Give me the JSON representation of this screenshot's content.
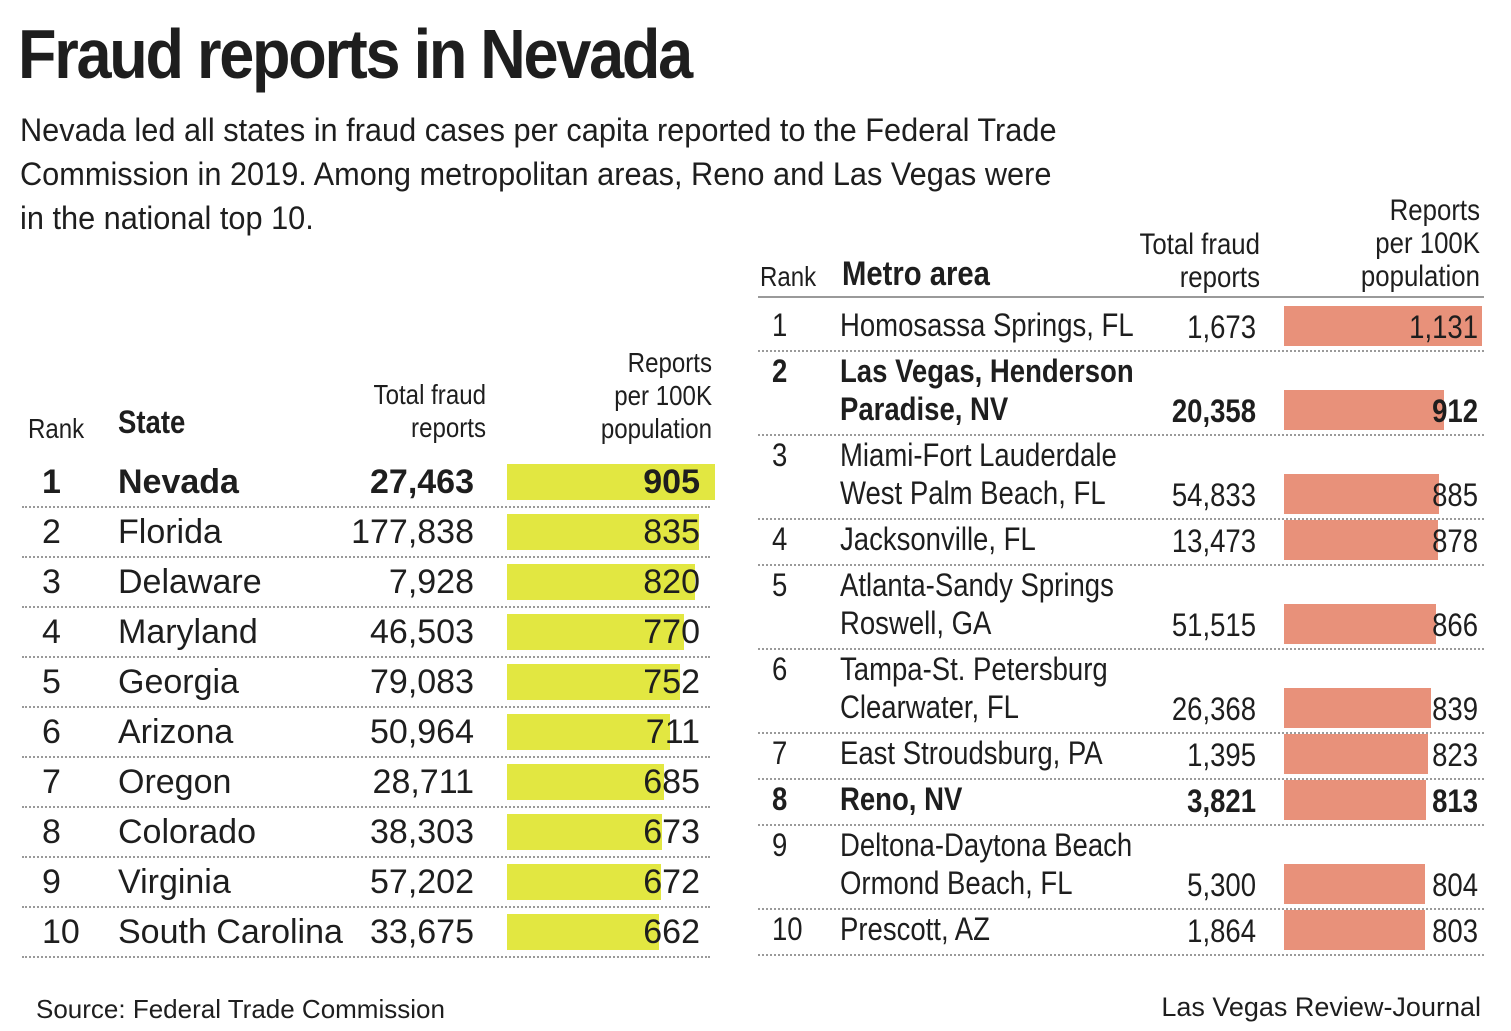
{
  "title": "Fraud reports in Nevada",
  "subtitle": "Nevada led all states in fraud cases per capita reported to the Federal Trade Commission in 2019. Among metropolitan areas, Reno and Las Vegas were in the national top 10.",
  "state_table": {
    "col_rank": "Rank",
    "col_name": "State",
    "col_total_line1": "Total fraud",
    "col_total_line2": "reports",
    "col_rate_line1": "Reports",
    "col_rate_line2": "per 100K",
    "col_rate_line3": "population"
  },
  "metro_table": {
    "col_rank": "Rank",
    "col_name": "Metro area",
    "col_total_line1": "Total fraud",
    "col_total_line2": "reports",
    "col_rate_line1": "Reports",
    "col_rate_line2": "per 100K",
    "col_rate_line3": "population"
  },
  "colors": {
    "state_bar": "#e2e741",
    "metro_bar": "#e8917a",
    "text": "#1e1e1e",
    "separator": "#9a9a9a"
  },
  "chart_data": [
    {
      "type": "bar",
      "orientation": "horizontal",
      "categories": [
        "Nevada",
        "Florida",
        "Delaware",
        "Maryland",
        "Georgia",
        "Arizona",
        "Oregon",
        "Colorado",
        "Virginia",
        "South Carolina"
      ],
      "ranks": [
        "1",
        "2",
        "3",
        "4",
        "5",
        "6",
        "7",
        "8",
        "9",
        "10"
      ],
      "total_reports": [
        "27,463",
        "177,838",
        "7,928",
        "46,503",
        "79,083",
        "50,964",
        "28,711",
        "38,303",
        "57,202",
        "33,675"
      ],
      "values": [
        905,
        835,
        820,
        770,
        752,
        711,
        685,
        673,
        672,
        662
      ],
      "value_labels": [
        "905",
        "835",
        "820",
        "770",
        "752",
        "711",
        "685",
        "673",
        "672",
        "662"
      ],
      "highlight": [
        true,
        false,
        false,
        false,
        false,
        false,
        false,
        false,
        false,
        false
      ],
      "bar_color": "#e2e741"
    },
    {
      "type": "bar",
      "orientation": "horizontal",
      "categories": [
        [
          "Homosassa Springs, FL"
        ],
        [
          "Las Vegas, Henderson",
          "Paradise, NV"
        ],
        [
          "Miami-Fort Lauderdale",
          "West Palm Beach, FL"
        ],
        [
          "Jacksonville, FL"
        ],
        [
          "Atlanta-Sandy Springs",
          "Roswell, GA"
        ],
        [
          "Tampa-St. Petersburg",
          "Clearwater, FL"
        ],
        [
          "East Stroudsburg, PA"
        ],
        [
          "Reno, NV"
        ],
        [
          "Deltona-Daytona Beach",
          "Ormond Beach, FL"
        ],
        [
          "Prescott, AZ"
        ]
      ],
      "ranks": [
        "1",
        "2",
        "3",
        "4",
        "5",
        "6",
        "7",
        "8",
        "9",
        "10"
      ],
      "total_reports": [
        "1,673",
        "20,358",
        "54,833",
        "13,473",
        "51,515",
        "26,368",
        "1,395",
        "3,821",
        "5,300",
        "1,864"
      ],
      "values": [
        1131,
        912,
        885,
        878,
        866,
        839,
        823,
        813,
        804,
        803
      ],
      "value_labels": [
        "1,131",
        "912",
        "885",
        "878",
        "866",
        "839",
        "823",
        "813",
        "804",
        "803"
      ],
      "highlight": [
        false,
        true,
        false,
        false,
        false,
        false,
        false,
        true,
        false,
        false
      ],
      "bar_color": "#e8917a"
    }
  ],
  "source": "Source: Federal Trade Commission",
  "credit": "Las Vegas Review-Journal"
}
